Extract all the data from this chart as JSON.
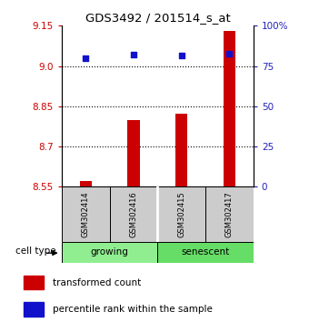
{
  "title": "GDS3492 / 201514_s_at",
  "samples": [
    "GSM302414",
    "GSM302416",
    "GSM302415",
    "GSM302417"
  ],
  "transformed_counts": [
    8.572,
    8.8,
    8.822,
    9.13
  ],
  "percentile_ranks": [
    80.0,
    82.0,
    81.5,
    82.5
  ],
  "ylim_left": [
    8.55,
    9.15
  ],
  "ylim_right": [
    0,
    100
  ],
  "yticks_left": [
    8.55,
    8.7,
    8.85,
    9.0,
    9.15
  ],
  "yticks_right": [
    0,
    25,
    50,
    75,
    100
  ],
  "ytick_labels_right": [
    "0",
    "25",
    "50",
    "75",
    "100%"
  ],
  "groups": [
    {
      "label": "growing",
      "samples": [
        0,
        1
      ],
      "color": "#90EE90"
    },
    {
      "label": "senescent",
      "samples": [
        2,
        3
      ],
      "color": "#66DD66"
    }
  ],
  "bar_color": "#cc0000",
  "dot_color": "#1111cc",
  "bar_width": 0.25,
  "label_color_left": "#cc0000",
  "label_color_right": "#2222bb",
  "legend_bar_label": "transformed count",
  "legend_dot_label": "percentile rank within the sample",
  "cell_type_label": "cell type"
}
